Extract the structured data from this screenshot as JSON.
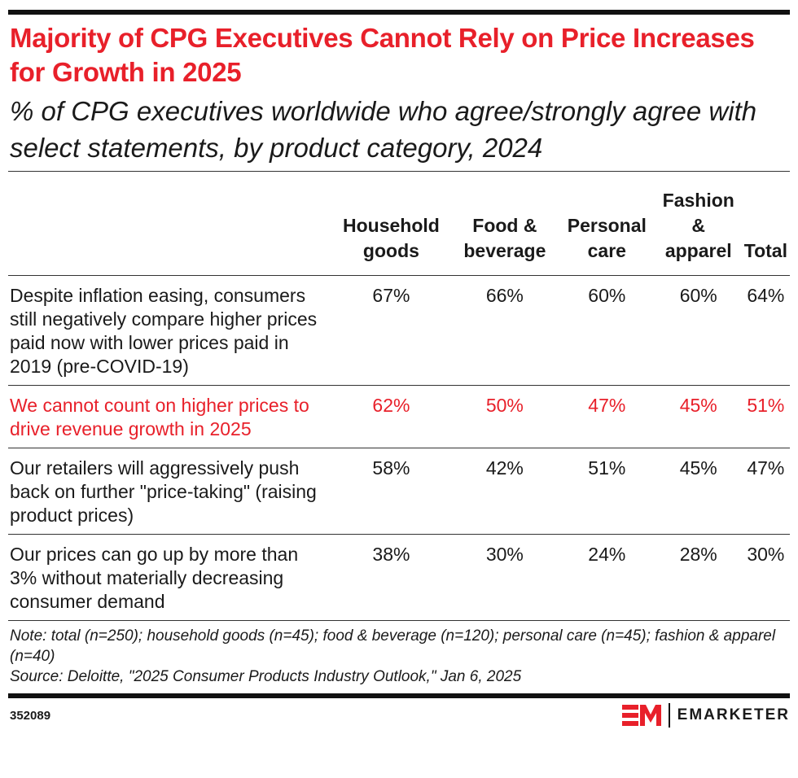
{
  "title": "Majority of CPG Executives Cannot Rely on Price Increases for Growth in 2025",
  "subtitle": "% of CPG executives worldwide who agree/strongly agree with select statements, by product category, 2024",
  "colors": {
    "accent": "#e8202a",
    "text": "#1a1a1a"
  },
  "chart_data": {
    "type": "table",
    "columns": [
      "Household goods",
      "Food & beverage",
      "Personal care",
      "Fashion & apparel",
      "Total"
    ],
    "rows": [
      {
        "label": "Despite inflation easing, consumers still negatively compare higher prices paid now with lower prices paid in 2019 (pre-COVID-19)",
        "values": [
          "67%",
          "66%",
          "60%",
          "60%",
          "64%"
        ],
        "highlight": false
      },
      {
        "label": "We cannot count on higher prices to drive revenue growth in 2025",
        "values": [
          "62%",
          "50%",
          "47%",
          "45%",
          "51%"
        ],
        "highlight": true
      },
      {
        "label": "Our retailers will aggressively push back on further \"price-taking\" (raising product prices)",
        "values": [
          "58%",
          "42%",
          "51%",
          "45%",
          "47%"
        ],
        "highlight": false
      },
      {
        "label": "Our prices can go up by more than 3% without materially decreasing consumer demand",
        "values": [
          "38%",
          "30%",
          "24%",
          "28%",
          "30%"
        ],
        "highlight": false
      }
    ]
  },
  "note": "Note: total (n=250); household goods (n=45); food & beverage (n=120); personal care (n=45); fashion & apparel (n=40)",
  "source": "Source: Deloitte, \"2025 Consumer Products Industry Outlook,\" Jan 6, 2025",
  "chart_id": "352089",
  "logo": {
    "mark": "EM",
    "word": "EMARKETER"
  }
}
